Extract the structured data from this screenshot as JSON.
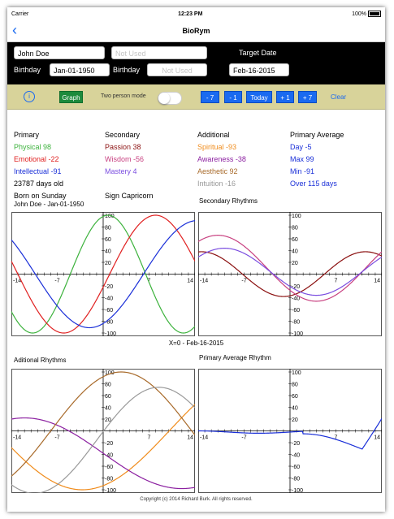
{
  "status": {
    "carrier": "Carrier",
    "time": "12:23 PM",
    "battery": "100%"
  },
  "nav": {
    "title": "BioRym"
  },
  "black": {
    "name": "John Doe",
    "name2_placeholder": "Not Used",
    "target_label": "Target Date",
    "birthday_label": "Birthday",
    "birthday": "Jan-01-1950",
    "birthday2_label": "Birthday",
    "birthday2_placeholder": "Not Used",
    "target_date": "Feb-16-2015"
  },
  "toolbar": {
    "graph": "Graph",
    "two_person": "Two person mode",
    "m7": "- 7",
    "m1": "- 1",
    "today": "Today",
    "p1": "+ 1",
    "p7": "+ 7",
    "clear": "Clear"
  },
  "primary": {
    "title": "Primary",
    "physical": "Physical 98",
    "emotional": "Emotional -22",
    "intellectual": "Intellectual -91",
    "days": "23787 days old",
    "born": "Born on Sunday"
  },
  "secondary": {
    "title": "Secondary",
    "passion": "Passion 38",
    "wisdom": "Wisdom -56",
    "mastery": "Mastery 4",
    "sign": "Sign Capricorn"
  },
  "additional": {
    "title": "Additional",
    "spiritual": "Spiritual -93",
    "awareness": "Awareness -38",
    "aesthetic": "Aesthetic 92",
    "intuition": "Intuition -16"
  },
  "average": {
    "title": "Primary Average",
    "day": "Day -5",
    "max": "Max 99",
    "min": "Min -91",
    "over": "Over 115 days"
  },
  "charts": {
    "t1": "John Doe - Jan-01-1950",
    "t2": "Secondary Rhythms",
    "t3": "Aditional Rhythms",
    "t4": "Primary Average Rhythm",
    "xlabel": "X=0 - Feb-16-2015"
  },
  "colors": {
    "physical": "#3cb23c",
    "emotional": "#e02020",
    "intellectual": "#1a2fd8",
    "passion": "#8b1010",
    "wisdom": "#c84080",
    "mastery": "#7b4ee0",
    "spiritual": "#f08c1c",
    "awareness": "#8b1fa0",
    "aesthetic": "#a86a2a",
    "intuition": "#999999",
    "average": "#1a2fd8"
  },
  "chart_data": [
    {
      "type": "line",
      "title": "John Doe - Jan-01-1950",
      "x": [
        -14,
        14
      ],
      "ylim": [
        -100,
        100
      ],
      "xticks": [
        -14,
        -7,
        7,
        14
      ],
      "yticks": [
        100,
        80,
        60,
        40,
        20,
        -20,
        -40,
        -60,
        -80,
        -100
      ],
      "series": [
        {
          "name": "Physical",
          "period": 23,
          "value_at_0": 98
        },
        {
          "name": "Emotional",
          "period": 28,
          "value_at_0": -22
        },
        {
          "name": "Intellectual",
          "period": 33,
          "value_at_0": -91
        }
      ]
    },
    {
      "type": "line",
      "title": "Secondary Rhythms",
      "x": [
        -14,
        14
      ],
      "ylim": [
        -100,
        100
      ],
      "xticks": [
        -14,
        -7,
        7,
        14
      ],
      "yticks": [
        100,
        80,
        60,
        40,
        20,
        -20,
        -40,
        -60,
        -80,
        -100
      ],
      "series": [
        {
          "name": "Passion",
          "value_at_0": 38
        },
        {
          "name": "Wisdom",
          "value_at_0": -56
        },
        {
          "name": "Mastery",
          "value_at_0": 4
        }
      ]
    },
    {
      "type": "line",
      "title": "Aditional Rhythms",
      "x": [
        -14,
        14
      ],
      "ylim": [
        -100,
        100
      ],
      "xticks": [
        -14,
        -7,
        7,
        14
      ],
      "yticks": [
        100,
        80,
        60,
        40,
        20,
        -20,
        -40,
        -60,
        -80,
        -100
      ],
      "series": [
        {
          "name": "Spiritual",
          "period": 53,
          "value_at_0": -93
        },
        {
          "name": "Awareness",
          "period": 48,
          "value_at_0": -38
        },
        {
          "name": "Aesthetic",
          "period": 43,
          "value_at_0": 92
        },
        {
          "name": "Intuition",
          "period": 38,
          "value_at_0": -16
        }
      ]
    },
    {
      "type": "line",
      "title": "Primary Average Rhythm",
      "x": [
        -14,
        14
      ],
      "ylim": [
        -100,
        100
      ],
      "xticks": [
        -14,
        -7,
        7,
        14
      ],
      "yticks": [
        100,
        80,
        60,
        40,
        20,
        -20,
        -40,
        -60,
        -80,
        -100
      ],
      "series": [
        {
          "name": "Average",
          "value_at_0": -5
        }
      ]
    }
  ],
  "copyright": "Copyright (c) 2014 Richard Burk. All rights reserved."
}
